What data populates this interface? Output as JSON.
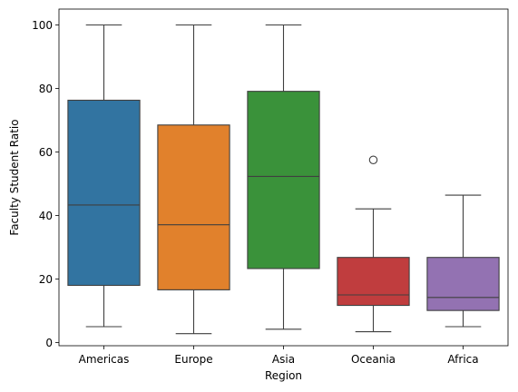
{
  "chart_data": {
    "type": "box",
    "xlabel": "Region",
    "ylabel": "Faculty Student Ratio",
    "ylim": [
      -1,
      105
    ],
    "y_ticks": [
      0,
      20,
      40,
      60,
      80,
      100
    ],
    "grid": false,
    "legend": "none",
    "categories": [
      "Americas",
      "Europe",
      "Asia",
      "Oceania",
      "Africa"
    ],
    "boxes": [
      {
        "category": "Americas",
        "min": 5.0,
        "q1": 18.0,
        "median": 43.3,
        "q3": 76.3,
        "max": 100.0,
        "outliers": [],
        "color": "#3274a1"
      },
      {
        "category": "Europe",
        "min": 2.8,
        "q1": 16.6,
        "median": 37.1,
        "q3": 68.5,
        "max": 100.0,
        "outliers": [],
        "color": "#e1812c"
      },
      {
        "category": "Asia",
        "min": 4.2,
        "q1": 23.3,
        "median": 52.3,
        "q3": 79.1,
        "max": 100.0,
        "outliers": [],
        "color": "#3a923a"
      },
      {
        "category": "Oceania",
        "min": 3.4,
        "q1": 11.7,
        "median": 15.0,
        "q3": 26.8,
        "max": 42.1,
        "outliers": [
          57.5
        ],
        "color": "#c03d3e"
      },
      {
        "category": "Africa",
        "min": 5.0,
        "q1": 10.1,
        "median": 14.2,
        "q3": 26.8,
        "max": 46.4,
        "outliers": [],
        "color": "#9372b2"
      }
    ]
  }
}
